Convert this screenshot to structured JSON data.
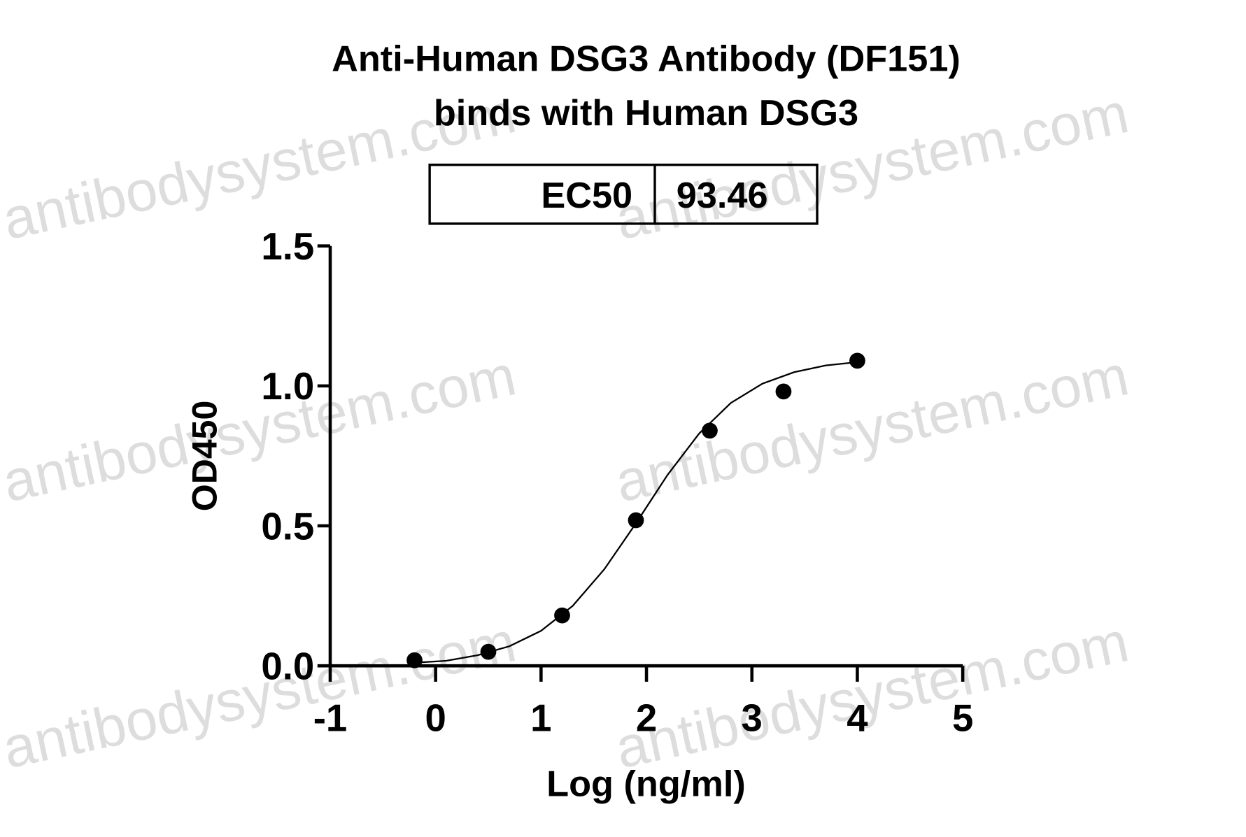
{
  "chart_data": {
    "type": "scatter",
    "title": [
      "Anti-Human DSG3 Antibody (DF151)",
      "binds with Human DSG3"
    ],
    "watermark": "antibodysystem.com",
    "ec50_table": {
      "label": "EC50",
      "value": 93.46
    },
    "x_label": "Log (ng/ml)",
    "y_label": "OD450",
    "xlim": [
      -1,
      5
    ],
    "xticks": [
      -1,
      0,
      1,
      2,
      3,
      4,
      5
    ],
    "ylim": [
      0,
      1.5
    ],
    "yticks": [
      {
        "value": 0,
        "label": "0.0"
      },
      0.5,
      {
        "value": 1,
        "label": "1.0"
      },
      1.5
    ],
    "series": [
      {
        "kind": "points",
        "color": "#000000",
        "x": [
          -0.2,
          0.5,
          1.2,
          1.9,
          2.6,
          3.3,
          4.0
        ],
        "values": [
          0.02,
          0.05,
          0.18,
          0.52,
          0.84,
          0.98,
          1.09
        ]
      },
      {
        "kind": "curve",
        "color": "#000000",
        "x": [
          -0.2,
          0.1,
          0.4,
          0.7,
          1.0,
          1.3,
          1.6,
          1.9,
          2.2,
          2.5,
          2.8,
          3.1,
          3.4,
          3.7,
          4.0
        ],
        "values": [
          0.011,
          0.018,
          0.038,
          0.07,
          0.125,
          0.214,
          0.345,
          0.509,
          0.682,
          0.83,
          0.939,
          1.008,
          1.049,
          1.073,
          1.085
        ]
      }
    ]
  }
}
